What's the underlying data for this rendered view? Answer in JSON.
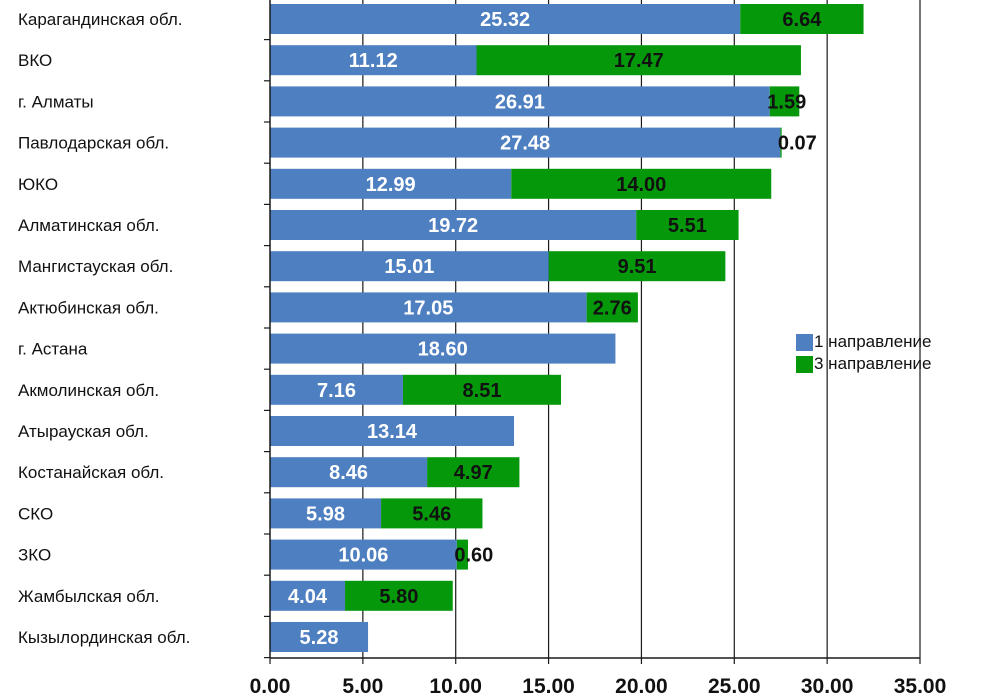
{
  "colors": {
    "series1": "#4e7fc0",
    "series2": "#06980b",
    "grid": "#1a1a1a"
  },
  "chart_data": {
    "type": "bar",
    "orientation": "horizontal",
    "stacked": true,
    "categories": [
      "Карагандинская обл.",
      "ВКО",
      "г. Алматы",
      "Павлодарская обл.",
      "ЮКО",
      "Алматинская обл.",
      "Мангистауская обл.",
      "Актюбинская обл.",
      "г. Астана",
      "Акмолинская обл.",
      "Атырауская обл.",
      "Костанайская обл.",
      "СКО",
      "ЗКО",
      "Жамбылская обл.",
      "Кызылординская обл."
    ],
    "series": [
      {
        "name": "1 направление",
        "values": [
          25.32,
          11.12,
          26.91,
          27.48,
          12.99,
          19.72,
          15.01,
          17.05,
          18.6,
          7.16,
          13.14,
          8.46,
          5.98,
          10.06,
          4.04,
          5.28
        ],
        "labels": [
          "25.32",
          "11.12",
          "26.91",
          "27.48",
          "12.99",
          "19.72",
          "15.01",
          "17.05",
          "18.60",
          "7.16",
          "13.14",
          "8.46",
          "5.98",
          "10.06",
          "4.04",
          "5.28"
        ]
      },
      {
        "name": "3 направление",
        "values": [
          6.64,
          17.47,
          1.59,
          0.07,
          14.0,
          5.51,
          9.51,
          2.76,
          null,
          8.51,
          null,
          4.97,
          5.46,
          0.6,
          5.8,
          null
        ],
        "labels": [
          "6.64",
          "17.47",
          "1.59",
          "0.07",
          "14.00",
          "5.51",
          "9.51",
          "2.76",
          "",
          "8.51",
          "",
          "4.97",
          "5.46",
          "0.60",
          "5.80",
          ""
        ]
      }
    ],
    "xlim": [
      0,
      35
    ],
    "x_ticks": [
      0,
      5,
      10,
      15,
      20,
      25,
      30,
      35
    ],
    "x_tick_labels": [
      "0.00",
      "5.00",
      "10.00",
      "15.00",
      "20.00",
      "25.00",
      "30.00",
      "35.00"
    ],
    "grid": "vertical",
    "legend_position": "right"
  }
}
